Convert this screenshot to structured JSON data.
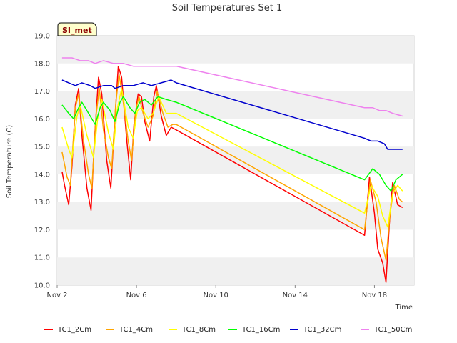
{
  "chart_data": {
    "type": "line",
    "title": "Soil Temperatures Set 1",
    "xlabel": "Time",
    "ylabel": "Soil Temperature (C)",
    "site_label": "SI_met",
    "x_axis": {
      "min": "2023-11-02",
      "max": "2023-11-20",
      "unit": "date"
    },
    "ylim": [
      10.0,
      19.0
    ],
    "x_ticks": [
      {
        "x": "2023-11-02",
        "label": "Nov 2"
      },
      {
        "x": "2023-11-06",
        "label": "Nov 6"
      },
      {
        "x": "2023-11-10",
        "label": "Nov 10"
      },
      {
        "x": "2023-11-14",
        "label": "Nov 14"
      },
      {
        "x": "2023-11-18",
        "label": "Nov 18"
      }
    ],
    "y_ticks": [
      "10.0",
      "11.0",
      "12.0",
      "13.0",
      "14.0",
      "15.0",
      "16.0",
      "17.0",
      "18.0",
      "19.0"
    ],
    "grid": "horizontal alternating bands",
    "legend_position": "bottom",
    "series": [
      {
        "name": "TC1_2Cm",
        "color": "#ff0000",
        "points": [
          [
            "2023-11-02 06:00",
            14.1
          ],
          [
            "2023-11-02 09:00",
            13.6
          ],
          [
            "2023-11-02 14:00",
            12.9
          ],
          [
            "2023-11-02 18:00",
            14.3
          ],
          [
            "2023-11-02 22:00",
            16.5
          ],
          [
            "2023-11-03 02:00",
            17.1
          ],
          [
            "2023-11-03 06:00",
            15.4
          ],
          [
            "2023-11-03 12:00",
            13.5
          ],
          [
            "2023-11-03 17:00",
            12.7
          ],
          [
            "2023-11-03 21:00",
            15.2
          ],
          [
            "2023-11-04 02:00",
            17.5
          ],
          [
            "2023-11-04 06:00",
            16.9
          ],
          [
            "2023-11-04 12:00",
            14.5
          ],
          [
            "2023-11-04 17:00",
            13.5
          ],
          [
            "2023-11-04 21:00",
            15.6
          ],
          [
            "2023-11-05 02:00",
            17.9
          ],
          [
            "2023-11-05 06:00",
            17.5
          ],
          [
            "2023-11-05 12:00",
            15.3
          ],
          [
            "2023-11-05 17:00",
            13.8
          ],
          [
            "2023-11-05 21:00",
            15.8
          ],
          [
            "2023-11-06 02:00",
            16.9
          ],
          [
            "2023-11-06 06:00",
            16.8
          ],
          [
            "2023-11-06 10:00",
            15.9
          ],
          [
            "2023-11-06 16:00",
            15.2
          ],
          [
            "2023-11-06 21:00",
            16.8
          ],
          [
            "2023-11-07 00:00",
            17.2
          ],
          [
            "2023-11-07 06:00",
            16.1
          ],
          [
            "2023-11-07 12:00",
            15.4
          ],
          [
            "2023-11-07 18:00",
            15.7
          ],
          [
            "2023-11-08 00:00",
            15.6
          ],
          [
            "2023-11-17 12:00",
            11.8
          ],
          [
            "2023-11-17 18:00",
            13.9
          ],
          [
            "2023-11-18 00:00",
            12.6
          ],
          [
            "2023-11-18 04:00",
            11.3
          ],
          [
            "2023-11-18 10:00",
            10.8
          ],
          [
            "2023-11-18 14:00",
            10.1
          ],
          [
            "2023-11-18 18:00",
            12.2
          ],
          [
            "2023-11-18 22:00",
            13.7
          ],
          [
            "2023-11-19 04:00",
            12.9
          ],
          [
            "2023-11-19 10:00",
            12.8
          ]
        ]
      },
      {
        "name": "TC1_4Cm",
        "color": "#ffa500",
        "points": [
          [
            "2023-11-02 06:00",
            14.8
          ],
          [
            "2023-11-02 12:00",
            13.9
          ],
          [
            "2023-11-02 16:00",
            13.6
          ],
          [
            "2023-11-02 22:00",
            16.4
          ],
          [
            "2023-11-03 02:00",
            16.9
          ],
          [
            "2023-11-03 08:00",
            15.2
          ],
          [
            "2023-11-03 14:00",
            14.0
          ],
          [
            "2023-11-03 18:00",
            13.5
          ],
          [
            "2023-11-03 23:00",
            16.1
          ],
          [
            "2023-11-04 03:00",
            17.1
          ],
          [
            "2023-11-04 08:00",
            15.6
          ],
          [
            "2023-11-04 14:00",
            14.6
          ],
          [
            "2023-11-04 18:00",
            14.2
          ],
          [
            "2023-11-04 23:00",
            16.6
          ],
          [
            "2023-11-05 03:00",
            17.6
          ],
          [
            "2023-11-05 08:00",
            16.6
          ],
          [
            "2023-11-05 14:00",
            15.2
          ],
          [
            "2023-11-05 18:00",
            14.5
          ],
          [
            "2023-11-05 23:00",
            16.3
          ],
          [
            "2023-11-06 03:00",
            16.8
          ],
          [
            "2023-11-06 08:00",
            16.2
          ],
          [
            "2023-11-06 14:00",
            15.7
          ],
          [
            "2023-11-06 20:00",
            16.1
          ],
          [
            "2023-11-07 01:00",
            17.0
          ],
          [
            "2023-11-07 08:00",
            16.2
          ],
          [
            "2023-11-07 14:00",
            15.7
          ],
          [
            "2023-11-07 20:00",
            15.8
          ],
          [
            "2023-11-08 00:00",
            15.8
          ],
          [
            "2023-11-17 12:00",
            12.0
          ],
          [
            "2023-11-17 19:00",
            13.8
          ],
          [
            "2023-11-18 02:00",
            13.0
          ],
          [
            "2023-11-18 08:00",
            11.7
          ],
          [
            "2023-11-18 14:00",
            10.9
          ],
          [
            "2023-11-18 19:00",
            12.6
          ],
          [
            "2023-11-19 00:00",
            13.6
          ],
          [
            "2023-11-19 06:00",
            13.1
          ],
          [
            "2023-11-19 10:00",
            13.0
          ]
        ]
      },
      {
        "name": "TC1_8Cm",
        "color": "#ffff00",
        "points": [
          [
            "2023-11-02 06:00",
            15.7
          ],
          [
            "2023-11-02 14:00",
            14.9
          ],
          [
            "2023-11-02 18:00",
            14.6
          ],
          [
            "2023-11-03 00:00",
            16.1
          ],
          [
            "2023-11-03 04:00",
            16.5
          ],
          [
            "2023-11-03 12:00",
            15.4
          ],
          [
            "2023-11-03 20:00",
            14.6
          ],
          [
            "2023-11-04 01:00",
            16.0
          ],
          [
            "2023-11-04 06:00",
            16.7
          ],
          [
            "2023-11-04 14:00",
            15.5
          ],
          [
            "2023-11-04 20:00",
            14.9
          ],
          [
            "2023-11-05 01:00",
            16.4
          ],
          [
            "2023-11-05 06:00",
            17.1
          ],
          [
            "2023-11-05 14:00",
            15.7
          ],
          [
            "2023-11-05 20:00",
            15.3
          ],
          [
            "2023-11-06 01:00",
            16.3
          ],
          [
            "2023-11-06 06:00",
            16.4
          ],
          [
            "2023-11-06 14:00",
            16.0
          ],
          [
            "2023-11-06 20:00",
            16.2
          ],
          [
            "2023-11-07 03:00",
            16.8
          ],
          [
            "2023-11-07 12:00",
            16.2
          ],
          [
            "2023-11-08 00:00",
            16.2
          ],
          [
            "2023-11-17 12:00",
            12.6
          ],
          [
            "2023-11-17 20:00",
            13.6
          ],
          [
            "2023-11-18 04:00",
            13.2
          ],
          [
            "2023-11-18 10:00",
            12.5
          ],
          [
            "2023-11-18 16:00",
            12.1
          ],
          [
            "2023-11-18 22:00",
            13.3
          ],
          [
            "2023-11-19 04:00",
            13.6
          ],
          [
            "2023-11-19 10:00",
            13.4
          ]
        ]
      },
      {
        "name": "TC1_16Cm",
        "color": "#00ff00",
        "points": [
          [
            "2023-11-02 06:00",
            16.5
          ],
          [
            "2023-11-02 14:00",
            16.2
          ],
          [
            "2023-11-02 20:00",
            16.0
          ],
          [
            "2023-11-03 02:00",
            16.4
          ],
          [
            "2023-11-03 06:00",
            16.6
          ],
          [
            "2023-11-03 14:00",
            16.2
          ],
          [
            "2023-11-03 22:00",
            15.8
          ],
          [
            "2023-11-04 04:00",
            16.4
          ],
          [
            "2023-11-04 08:00",
            16.6
          ],
          [
            "2023-11-04 16:00",
            16.3
          ],
          [
            "2023-11-04 22:00",
            15.9
          ],
          [
            "2023-11-05 04:00",
            16.6
          ],
          [
            "2023-11-05 08:00",
            16.8
          ],
          [
            "2023-11-05 16:00",
            16.4
          ],
          [
            "2023-11-05 22:00",
            16.2
          ],
          [
            "2023-11-06 04:00",
            16.6
          ],
          [
            "2023-11-06 10:00",
            16.7
          ],
          [
            "2023-11-06 18:00",
            16.5
          ],
          [
            "2023-11-07 02:00",
            16.8
          ],
          [
            "2023-11-07 12:00",
            16.7
          ],
          [
            "2023-11-08 00:00",
            16.6
          ],
          [
            "2023-11-17 12:00",
            13.8
          ],
          [
            "2023-11-17 22:00",
            14.2
          ],
          [
            "2023-11-18 06:00",
            14.0
          ],
          [
            "2023-11-18 14:00",
            13.6
          ],
          [
            "2023-11-18 20:00",
            13.4
          ],
          [
            "2023-11-19 02:00",
            13.8
          ],
          [
            "2023-11-19 10:00",
            14.0
          ]
        ]
      },
      {
        "name": "TC1_32Cm",
        "color": "#0000cd",
        "points": [
          [
            "2023-11-02 06:00",
            17.4
          ],
          [
            "2023-11-02 14:00",
            17.3
          ],
          [
            "2023-11-02 22:00",
            17.2
          ],
          [
            "2023-11-03 06:00",
            17.3
          ],
          [
            "2023-11-03 16:00",
            17.2
          ],
          [
            "2023-11-03 22:00",
            17.1
          ],
          [
            "2023-11-04 08:00",
            17.2
          ],
          [
            "2023-11-04 18:00",
            17.2
          ],
          [
            "2023-11-04 22:00",
            17.1
          ],
          [
            "2023-11-05 08:00",
            17.2
          ],
          [
            "2023-11-05 20:00",
            17.2
          ],
          [
            "2023-11-06 08:00",
            17.3
          ],
          [
            "2023-11-06 18:00",
            17.2
          ],
          [
            "2023-11-07 06:00",
            17.3
          ],
          [
            "2023-11-07 18:00",
            17.4
          ],
          [
            "2023-11-08 00:00",
            17.3
          ],
          [
            "2023-11-17 12:00",
            15.3
          ],
          [
            "2023-11-17 20:00",
            15.2
          ],
          [
            "2023-11-18 04:00",
            15.2
          ],
          [
            "2023-11-18 12:00",
            15.1
          ],
          [
            "2023-11-18 16:00",
            14.9
          ],
          [
            "2023-11-19 00:00",
            14.9
          ],
          [
            "2023-11-19 10:00",
            14.9
          ]
        ]
      },
      {
        "name": "TC1_50Cm",
        "color": "#ee82ee",
        "points": [
          [
            "2023-11-02 06:00",
            18.2
          ],
          [
            "2023-11-02 18:00",
            18.2
          ],
          [
            "2023-11-03 04:00",
            18.1
          ],
          [
            "2023-11-03 14:00",
            18.1
          ],
          [
            "2023-11-03 22:00",
            18.0
          ],
          [
            "2023-11-04 08:00",
            18.1
          ],
          [
            "2023-11-04 20:00",
            18.0
          ],
          [
            "2023-11-05 08:00",
            18.0
          ],
          [
            "2023-11-05 20:00",
            17.9
          ],
          [
            "2023-11-06 08:00",
            17.9
          ],
          [
            "2023-11-06 20:00",
            17.9
          ],
          [
            "2023-11-07 08:00",
            17.9
          ],
          [
            "2023-11-07 20:00",
            17.9
          ],
          [
            "2023-11-08 00:00",
            17.9
          ],
          [
            "2023-11-17 12:00",
            16.4
          ],
          [
            "2023-11-17 22:00",
            16.4
          ],
          [
            "2023-11-18 06:00",
            16.3
          ],
          [
            "2023-11-18 14:00",
            16.3
          ],
          [
            "2023-11-18 22:00",
            16.2
          ],
          [
            "2023-11-19 10:00",
            16.1
          ]
        ]
      }
    ]
  }
}
